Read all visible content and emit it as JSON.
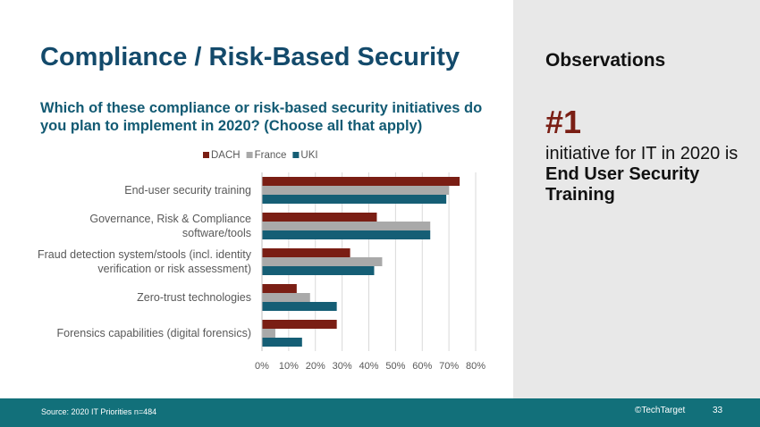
{
  "slide": {
    "title": "Compliance / Risk-Based Security",
    "question": "Which of these compliance or risk-based security initiatives do you plan to implement in 2020? (Choose all that apply)"
  },
  "observations": {
    "heading": "Observations",
    "rank": "#1",
    "text_plain": "initiative for IT in 2020 is ",
    "text_bold": "End User Security Training"
  },
  "footer": {
    "source": "Source:  2020 IT Priorities n=484",
    "copyright": "©TechTarget",
    "page": "33"
  },
  "colors": {
    "DACH": "#7a1e14",
    "France": "#a9a9a9",
    "UKI": "#155e75",
    "title": "#134a6b"
  },
  "chart_data": {
    "type": "bar",
    "orientation": "horizontal",
    "categories": [
      [
        "End-user security training"
      ],
      [
        "Governance, Risk & Compliance",
        "software/tools"
      ],
      [
        "Fraud detection system/stools (incl. identity",
        "verification or risk assessment)"
      ],
      [
        "Zero-trust technologies"
      ],
      [
        "Forensics capabilities (digital forensics)"
      ]
    ],
    "series": [
      {
        "name": "DACH",
        "values": [
          74,
          43,
          33,
          13,
          28
        ]
      },
      {
        "name": "France",
        "values": [
          70,
          63,
          45,
          18,
          5
        ]
      },
      {
        "name": "UKI",
        "values": [
          69,
          63,
          42,
          28,
          15
        ]
      }
    ],
    "xlim": [
      0,
      80
    ],
    "xticks": [
      "0%",
      "10%",
      "20%",
      "30%",
      "40%",
      "50%",
      "60%",
      "70%",
      "80%"
    ],
    "legend": "top",
    "grid": true
  }
}
